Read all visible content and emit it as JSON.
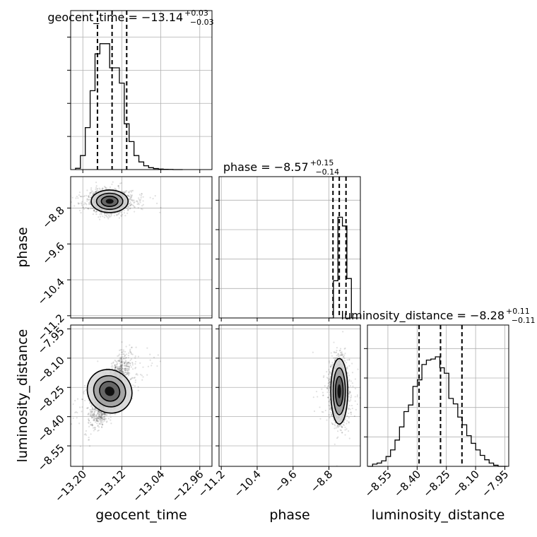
{
  "chart_data": {
    "type": "corner",
    "parameters": [
      "geocent_time",
      "phase",
      "luminosity_distance"
    ],
    "axes": {
      "geocent_time": {
        "label": "geocent_time",
        "range": [
          -13.225,
          -12.935
        ],
        "ticks": [
          "−13.20",
          "−13.12",
          "−13.04",
          "−12.96"
        ],
        "tick_values": [
          -13.2,
          -13.12,
          -13.04,
          -12.96
        ]
      },
      "phase": {
        "label": "phase",
        "range": [
          -11.25,
          -8.1
        ],
        "ticks": [
          "−11.2",
          "−10.4",
          "−9.6",
          "−8.8"
        ],
        "tick_values": [
          -11.2,
          -10.4,
          -9.6,
          -8.8
        ]
      },
      "luminosity_distance": {
        "label": "luminosity_distance",
        "range": [
          -8.655,
          -7.93
        ],
        "ticks": [
          "−8.55",
          "−8.40",
          "−8.25",
          "−8.10",
          "−7.95"
        ],
        "tick_values": [
          -8.55,
          -8.4,
          -8.25,
          -8.1,
          -7.95
        ]
      }
    },
    "titles": [
      {
        "text": "geocent_time = −13.14",
        "sup": "+0.03",
        "sub": "−0.03"
      },
      {
        "text": "phase = −8.57",
        "sup": "+0.15",
        "sub": "−0.14"
      },
      {
        "text": "luminosity_distance = −8.28",
        "sup": "+0.11",
        "sub": "−0.11"
      }
    ],
    "quantiles": {
      "geocent_time": [
        -13.17,
        -13.14,
        -13.11
      ],
      "phase": [
        -8.71,
        -8.57,
        -8.42
      ],
      "luminosity_distance": [
        -8.39,
        -8.28,
        -8.17
      ]
    },
    "histograms": {
      "geocent_time": {
        "x": [
          -13.21,
          -13.2,
          -13.19,
          -13.18,
          -13.17,
          -13.16,
          -13.15,
          -13.14,
          -13.13,
          -13.12,
          -13.11,
          -13.1,
          -13.09,
          -13.08,
          -13.07,
          -13.06,
          -13.05,
          -13.04,
          -13.03,
          -13.02,
          -13.01,
          -13.0
        ],
        "counts": [
          0.01,
          0.11,
          0.33,
          0.62,
          0.91,
          0.99,
          0.99,
          0.8,
          0.8,
          0.68,
          0.36,
          0.22,
          0.11,
          0.06,
          0.03,
          0.015,
          0.008,
          0.004,
          0.002,
          0.001,
          0.0,
          0.0
        ]
      },
      "phase": {
        "x": [
          -8.75,
          -8.65,
          -8.55,
          -8.45,
          -8.35,
          -8.25
        ],
        "counts": [
          0.0,
          0.34,
          0.92,
          0.84,
          0.36,
          0.0
        ]
      },
      "luminosity_distance": {
        "x": [
          -8.64,
          -8.617,
          -8.594,
          -8.571,
          -8.548,
          -8.525,
          -8.502,
          -8.479,
          -8.456,
          -8.433,
          -8.41,
          -8.387,
          -8.364,
          -8.341,
          -8.318,
          -8.295,
          -8.272,
          -8.249,
          -8.226,
          -8.203,
          -8.18,
          -8.157,
          -8.134,
          -8.111,
          -8.088,
          -8.065,
          -8.042,
          -8.019,
          -7.996,
          -7.973,
          -7.95
        ],
        "counts": [
          0.0,
          0.02,
          0.03,
          0.05,
          0.09,
          0.15,
          0.24,
          0.36,
          0.5,
          0.56,
          0.73,
          0.79,
          0.93,
          0.97,
          0.98,
          1.0,
          0.9,
          0.85,
          0.62,
          0.57,
          0.45,
          0.38,
          0.28,
          0.21,
          0.15,
          0.1,
          0.06,
          0.03,
          0.01,
          0.0,
          0.0
        ]
      }
    },
    "scatter_2d": [
      {
        "x": "geocent_time",
        "y": "phase",
        "center": [
          -13.145,
          -8.65
        ],
        "spread": [
          0.018,
          0.12
        ],
        "corr": 0.0
      },
      {
        "x": "geocent_time",
        "y": "luminosity_distance",
        "center": [
          -13.145,
          -8.27
        ],
        "spread": [
          0.018,
          0.08
        ],
        "corr": 0.78
      },
      {
        "x": "phase",
        "y": "luminosity_distance",
        "center": [
          -8.57,
          -8.27
        ],
        "spread": [
          0.09,
          0.08
        ],
        "corr": 0.0
      }
    ],
    "grid": true,
    "colors": {
      "line": "#000000",
      "grid": "#b0b0b0",
      "point": "#000000"
    }
  }
}
